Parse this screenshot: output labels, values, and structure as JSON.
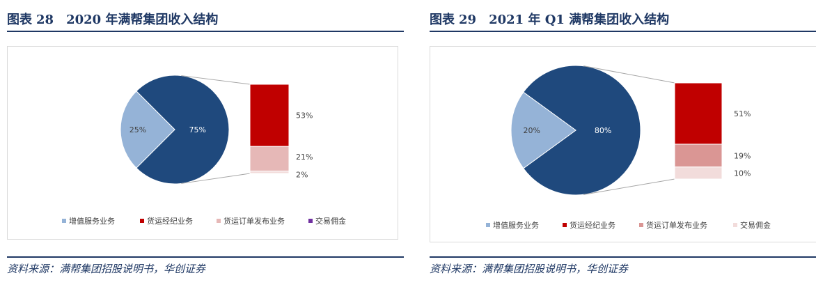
{
  "left": {
    "title_prefix": "图表",
    "title_num": "28",
    "title_text": "2020 年满帮集团收入结构",
    "source": "资料来源：满帮集团招股说明书，华创证券"
  },
  "right": {
    "title_prefix": "图表",
    "title_num": "29",
    "title_text": "2021 年 Q1 满帮集团收入结构",
    "source": "资料来源：满帮集团招股说明书，华创证券"
  },
  "colors": {
    "title": "#1f3864",
    "pie_main": "#1f497d",
    "pie_minor": "#95b3d7",
    "bar_brokerage": "#c00000",
    "bar_listing": "#e6b8b7",
    "bar_listing_q1": "#da9694",
    "bar_commission": "#f2dcdb",
    "legend_commission": "#7030a0"
  },
  "chart_data": [
    {
      "type": "bar-of-pie",
      "pie": [
        {
          "name": "增值服务业务",
          "value": 25,
          "label": "25%"
        },
        {
          "name": "",
          "value": 75,
          "label": "75%"
        }
      ],
      "bar": [
        {
          "name": "货运经纪业务",
          "value": 53,
          "label": "53%"
        },
        {
          "name": "货运订单发布业务",
          "value": 21,
          "label": "21%"
        },
        {
          "name": "交易佣金",
          "value": 2,
          "label": "2%"
        }
      ],
      "legend": [
        "增值服务业务",
        "货运经纪业务",
        "货运订单发布业务",
        "交易佣金"
      ],
      "legend_position": "bottom"
    },
    {
      "type": "bar-of-pie",
      "pie": [
        {
          "name": "增值服务业务",
          "value": 20,
          "label": "20%"
        },
        {
          "name": "",
          "value": 80,
          "label": "80%"
        }
      ],
      "bar": [
        {
          "name": "货运经纪业务",
          "value": 51,
          "label": "51%"
        },
        {
          "name": "货运订单发布业务",
          "value": 19,
          "label": "19%"
        },
        {
          "name": "交易佣金",
          "value": 10,
          "label": "10%"
        }
      ],
      "legend": [
        "增值服务业务",
        "货运经纪业务",
        "货运订单发布业务",
        "交易佣金"
      ],
      "legend_position": "bottom"
    }
  ]
}
